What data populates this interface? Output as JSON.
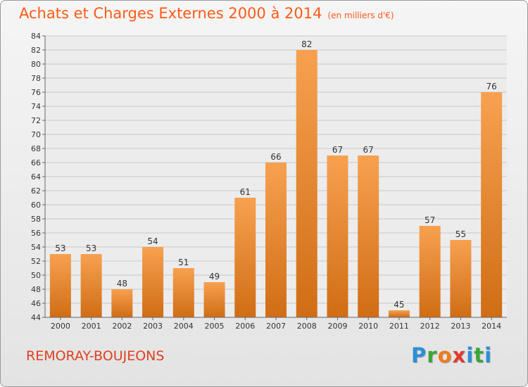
{
  "header": {
    "title": "Achats et Charges Externes 2000 à 2014",
    "unit": "(en milliers d'€)"
  },
  "footer": {
    "place": "REMORAY-BOUJEONS",
    "logo": {
      "letters": [
        "P",
        "r",
        "o",
        "x",
        "i",
        "t",
        "i"
      ],
      "colors": [
        "#2c8fd6",
        "#3aa63a",
        "#f07a1a",
        "#e23a2a",
        "#2c8fd6",
        "#3aa63a",
        "#2c8fd6"
      ]
    }
  },
  "colors": {
    "bar_light": "#f7a150",
    "bar_dark": "#d06d15",
    "title": "#ff5a17",
    "grid": "#c8c8c8"
  },
  "chart_data": {
    "type": "bar",
    "categories": [
      "2000",
      "2001",
      "2002",
      "2003",
      "2004",
      "2005",
      "2006",
      "2007",
      "2008",
      "2009",
      "2010",
      "2011",
      "2012",
      "2013",
      "2014"
    ],
    "values": [
      53,
      53,
      48,
      54,
      51,
      49,
      61,
      66,
      82,
      67,
      67,
      45,
      57,
      55,
      76
    ],
    "ylim": [
      44,
      84
    ],
    "yticks": [
      44,
      46,
      48,
      50,
      52,
      54,
      56,
      58,
      60,
      62,
      64,
      66,
      68,
      70,
      72,
      74,
      76,
      78,
      80,
      82,
      84
    ],
    "grid": true,
    "data_labels": true
  }
}
